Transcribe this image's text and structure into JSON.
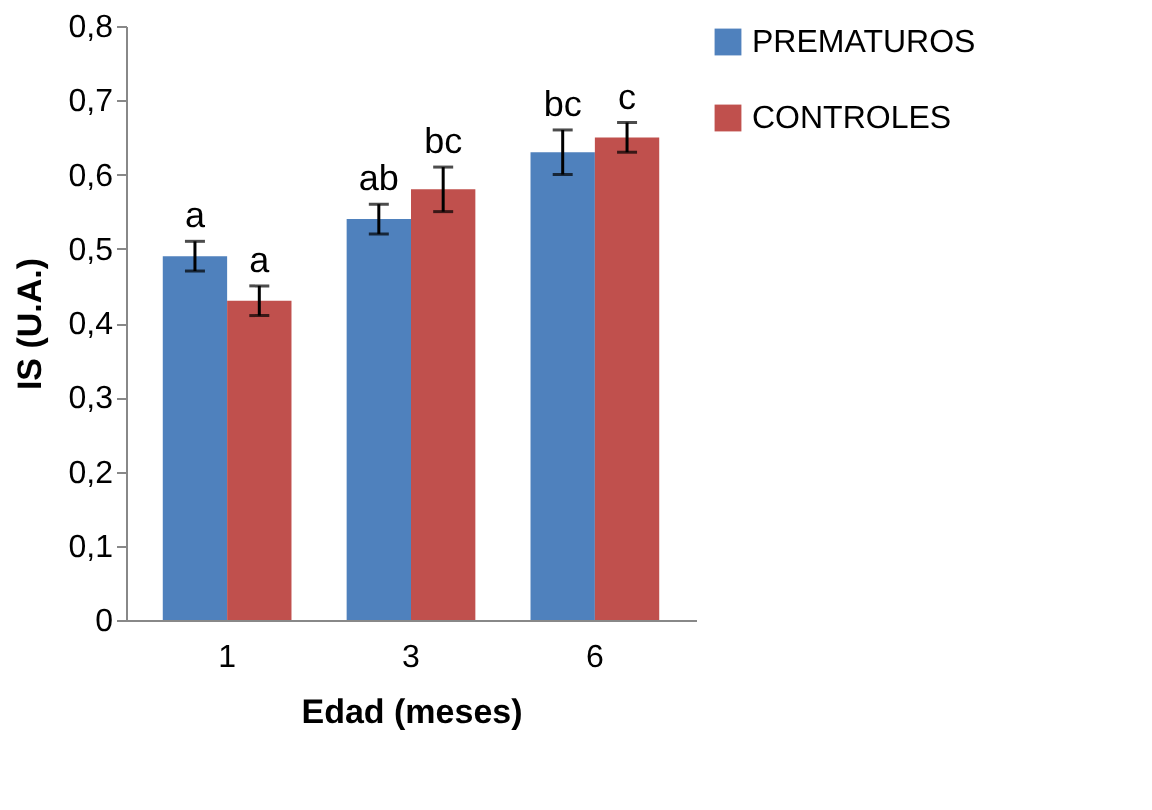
{
  "chart_data": {
    "type": "bar",
    "xlabel": "Edad (meses)",
    "ylabel": "IS (U.A.)",
    "categories": [
      "1",
      "3",
      "6"
    ],
    "series": [
      {
        "name": "PREMATUROS",
        "color": "#4f81bd",
        "values": [
          0.49,
          0.54,
          0.63
        ],
        "errors": [
          0.02,
          0.02,
          0.03
        ]
      },
      {
        "name": "CONTROLES",
        "color": "#c0504d",
        "values": [
          0.43,
          0.58,
          0.65
        ],
        "errors": [
          0.02,
          0.03,
          0.02
        ]
      }
    ],
    "ylim": [
      0,
      0.8
    ],
    "yticks": [
      0,
      {
        "value": 0.1,
        "label": "0,1"
      },
      {
        "value": 0.2,
        "label": "0,2"
      },
      {
        "value": 0.3,
        "label": "0,3"
      },
      {
        "value": 0.4,
        "label": "0,4"
      },
      {
        "value": 0.5,
        "label": "0,5"
      },
      {
        "value": 0.6,
        "label": "0,6"
      },
      {
        "value": 0.7,
        "label": "0,7"
      },
      {
        "value": 0.8,
        "label": "0,8"
      }
    ],
    "grid": false,
    "legend": "right",
    "annotations": [
      {
        "text": "a",
        "x": "1",
        "y": 0.49
      },
      {
        "text": "a",
        "x": "1",
        "y": 0.43
      },
      {
        "text": "ab",
        "x": "3",
        "y": 0.54
      },
      {
        "text": "bc",
        "x": "3",
        "y": 0.58
      },
      {
        "text": "bc",
        "x": "6",
        "y": 0.63
      },
      {
        "text": "c",
        "x": "6",
        "y": 0.65
      }
    ]
  }
}
